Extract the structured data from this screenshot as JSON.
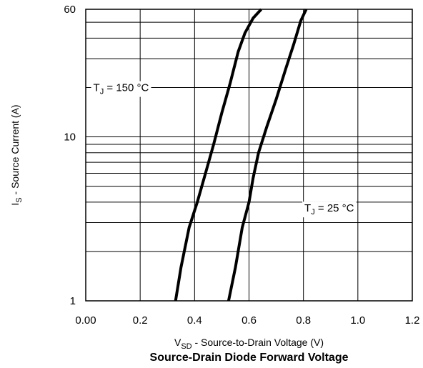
{
  "chart_data": {
    "type": "line",
    "title": "Source-Drain Diode Forward Voltage",
    "xlabel": {
      "main": "V",
      "sub": "SD",
      "rest": " - Source-to-Drain Voltage (V)"
    },
    "ylabel": {
      "main": "I",
      "sub": "S",
      "rest": " - Source Current (A)"
    },
    "xlim": [
      0,
      1.2
    ],
    "ylim": [
      1,
      60
    ],
    "yscale": "log",
    "x_ticks": [
      0.0,
      0.2,
      0.4,
      0.6,
      0.8,
      1.0,
      1.2
    ],
    "x_tick_labels": [
      "0.00",
      "0.2",
      "0.4",
      "0.6",
      "0.8",
      "1.0",
      "1.2"
    ],
    "y_ticks": [
      1,
      10,
      60
    ],
    "y_tick_labels": [
      "1",
      "10",
      "60"
    ],
    "grid": true,
    "series": [
      {
        "name": {
          "main": "T",
          "sub": "J",
          "rest": " = 150 °C"
        },
        "x": [
          0.33,
          0.35,
          0.38,
          0.41,
          0.44,
          0.47,
          0.5,
          0.53,
          0.56,
          0.585,
          0.615,
          0.645
        ],
        "y": [
          1,
          1.6,
          2.8,
          4.0,
          6.0,
          9.0,
          14,
          21,
          33,
          43,
          53,
          60
        ]
      },
      {
        "name": {
          "main": "T",
          "sub": "J",
          "rest": " = 25 °C"
        },
        "x": [
          0.525,
          0.55,
          0.575,
          0.6,
          0.615,
          0.635,
          0.665,
          0.7,
          0.735,
          0.765,
          0.79,
          0.81
        ],
        "y": [
          1,
          1.6,
          2.8,
          4.0,
          5.6,
          8.0,
          11.5,
          17,
          26,
          37,
          51,
          60
        ]
      }
    ],
    "annotations": [
      {
        "series": 0,
        "x": 0.232,
        "y": 19
      },
      {
        "series": 1,
        "x": 0.986,
        "y": 3.5
      }
    ]
  }
}
